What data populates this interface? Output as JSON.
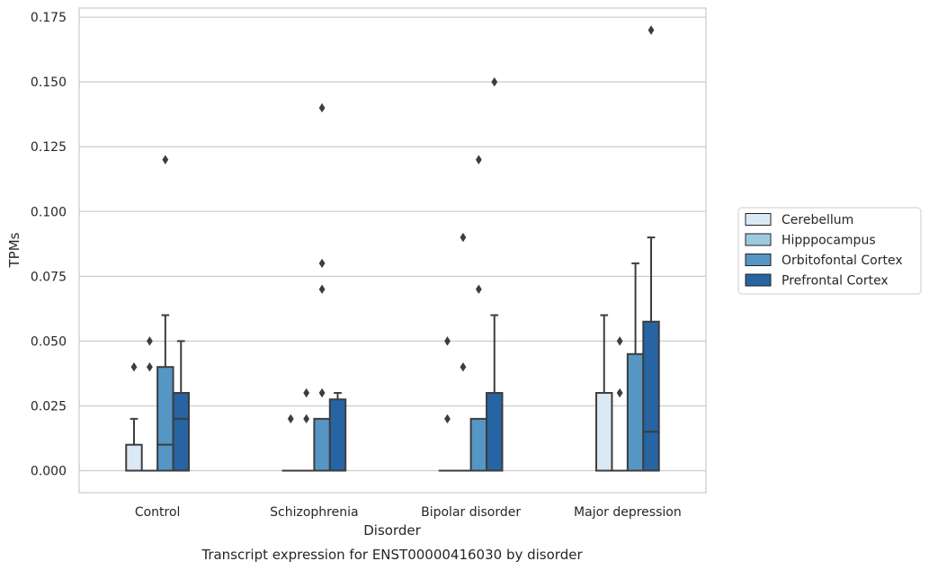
{
  "chart_data": {
    "type": "boxplot",
    "title": "",
    "xlabel": "Disorder",
    "ylabel": "TPMs",
    "caption": "Transcript expression for ENST00000416030 by disorder",
    "ylim": [
      -0.0085,
      0.1785
    ],
    "yticks": [
      "0.000",
      "0.025",
      "0.050",
      "0.075",
      "0.100",
      "0.125",
      "0.150",
      "0.175"
    ],
    "ytick_values": [
      0,
      0.025,
      0.05,
      0.075,
      0.1,
      0.125,
      0.15,
      0.175
    ],
    "grid": true,
    "legend_position": "right",
    "categories": [
      "Control",
      "Schizophrenia",
      "Bipolar disorder",
      "Major depression"
    ],
    "series": [
      {
        "name": "Cerebellum",
        "color": "#dbe9f6",
        "boxes": [
          {
            "q1": 0,
            "median": 0,
            "q3": 0.01,
            "whisker_low": 0,
            "whisker_high": 0.02,
            "fliers": [
              0.04
            ]
          },
          {
            "q1": 0,
            "median": 0,
            "q3": 0,
            "whisker_low": 0,
            "whisker_high": 0,
            "fliers": [
              0.02
            ]
          },
          {
            "q1": 0,
            "median": 0,
            "q3": 0,
            "whisker_low": 0,
            "whisker_high": 0,
            "fliers": [
              0.02,
              0.05
            ]
          },
          {
            "q1": 0,
            "median": 0,
            "q3": 0.03,
            "whisker_low": 0,
            "whisker_high": 0.06,
            "fliers": []
          }
        ]
      },
      {
        "name": "Hipppocampus",
        "color": "#9ecae1",
        "boxes": [
          {
            "q1": 0,
            "median": 0,
            "q3": 0,
            "whisker_low": 0,
            "whisker_high": 0,
            "fliers": [
              0.04,
              0.05
            ]
          },
          {
            "q1": 0,
            "median": 0,
            "q3": 0,
            "whisker_low": 0,
            "whisker_high": 0,
            "fliers": [
              0.02,
              0.03
            ]
          },
          {
            "q1": 0,
            "median": 0,
            "q3": 0,
            "whisker_low": 0,
            "whisker_high": 0,
            "fliers": [
              0.04,
              0.09
            ]
          },
          {
            "q1": 0,
            "median": 0,
            "q3": 0,
            "whisker_low": 0,
            "whisker_high": 0,
            "fliers": [
              0.03,
              0.05
            ]
          }
        ]
      },
      {
        "name": "Orbitofontal Cortex",
        "color": "#5596c4",
        "boxes": [
          {
            "q1": 0,
            "median": 0.01,
            "q3": 0.04,
            "whisker_low": 0,
            "whisker_high": 0.06,
            "fliers": [
              0.12
            ]
          },
          {
            "q1": 0,
            "median": 0,
            "q3": 0.02,
            "whisker_low": 0,
            "whisker_high": 0.02,
            "fliers": [
              0.03,
              0.07,
              0.08,
              0.14
            ]
          },
          {
            "q1": 0,
            "median": 0,
            "q3": 0.02,
            "whisker_low": 0,
            "whisker_high": 0.02,
            "fliers": [
              0.07,
              0.12
            ]
          },
          {
            "q1": 0,
            "median": 0,
            "q3": 0.045,
            "whisker_low": 0,
            "whisker_high": 0.08,
            "fliers": []
          }
        ]
      },
      {
        "name": "Prefrontal Cortex",
        "color": "#2664a3",
        "boxes": [
          {
            "q1": 0,
            "median": 0.02,
            "q3": 0.03,
            "whisker_low": 0,
            "whisker_high": 0.05,
            "fliers": []
          },
          {
            "q1": 0,
            "median": 0,
            "q3": 0.0275,
            "whisker_low": 0,
            "whisker_high": 0.03,
            "fliers": []
          },
          {
            "q1": 0,
            "median": 0,
            "q3": 0.03,
            "whisker_low": 0,
            "whisker_high": 0.06,
            "fliers": [
              0.15
            ]
          },
          {
            "q1": 0,
            "median": 0.015,
            "q3": 0.0575,
            "whisker_low": 0,
            "whisker_high": 0.09,
            "fliers": [
              0.17
            ]
          }
        ]
      }
    ]
  }
}
